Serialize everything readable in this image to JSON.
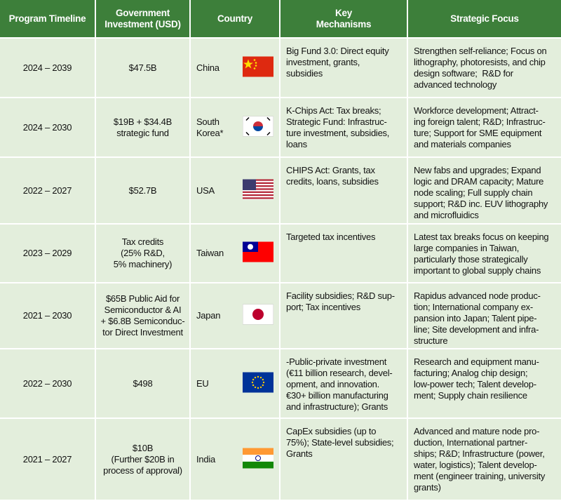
{
  "table": {
    "header": [
      "Program Timeline",
      "Government\nInvestment (USD)",
      "Country",
      "Key\nMechanisms",
      "Strategic Focus"
    ],
    "rows": [
      [
        "2024 – 2039",
        "$47.5B",
        "China",
        "Big Fund 3.0: Direct equity\ninvestment, grants,\nsubsidies",
        "Strengthen self-reliance; Focus on\nlithography, photoresists, and chip\ndesign software;  R&D for\nadvanced technology"
      ],
      [
        "2024 – 2030",
        "$19B + $34.4B\nstrategic fund",
        "South\nKorea*",
        "K-Chips Act: Tax breaks;\nStrategic Fund: Infrastruc-\nture investment, subsidies,\nloans",
        "Workforce development; Attract-\ning foreign talent; R&D; Infrastruc-\nture; Support for SME equipment\nand materials companies"
      ],
      [
        "2022 – 2027",
        "$52.7B",
        "USA",
        "CHIPS Act: Grants, tax\ncredits, loans, subsidies",
        "New fabs and upgrades; Expand\nlogic and DRAM capacity; Mature\nnode scaling; Full supply chain\nsupport; R&D inc. EUV lithography\nand microfluidics"
      ],
      [
        "2023 – 2029",
        "Tax credits\n(25% R&D,\n5% machinery)",
        "Taiwan",
        "Targeted tax incentives",
        "Latest tax breaks focus on keeping\nlarge companies in Taiwan,\nparticularly those strategically\nimportant to global supply chains"
      ],
      [
        "2021 – 2030",
        "$65B Public Aid for\nSemiconductor & AI\n+ $6.8B Semiconduc-\ntor Direct Investment",
        "Japan",
        "Facility subsidies; R&D sup-\nport; Tax incentives",
        "Rapidus advanced node produc-\ntion; International company ex-\npansion into Japan; Talent pipe-\nline; Site development and infra-\nstructure"
      ],
      [
        "2022 – 2030",
        "$498",
        "EU",
        "-Public-private investment\n(€11 billion research, devel-\nopment, and innovation.\n€30+ billion manufacturing\nand infrastructure); Grants",
        "Research and equipment manu-\nfacturing; Analog chip design;\nlow-power tech; Talent develop-\nment; Supply chain resilience"
      ],
      [
        "2021 – 2027",
        "$10B\n(Further $20B in\nprocess of approval)",
        "India",
        "CapEx subsidies (up to\n75%); State-level subsidies;\nGrants",
        "Advanced and mature node pro-\nduction, International partner-\nships; R&D; Infrastructure (power,\nwater, logistics); Talent develop-\nment (engineer training, university\ngrants)"
      ]
    ]
  }
}
